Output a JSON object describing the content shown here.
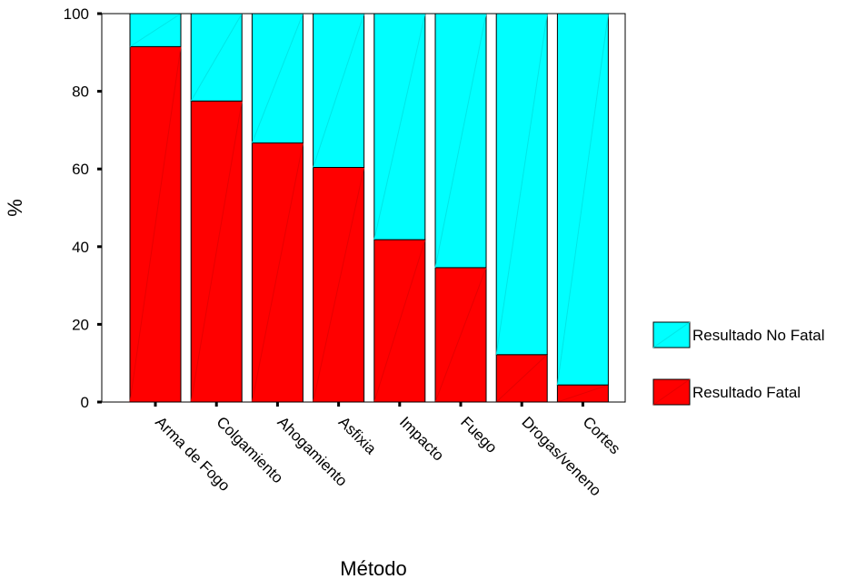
{
  "chart_data": {
    "type": "bar",
    "stacked": true,
    "percent_scale": true,
    "categories": [
      "Arma de Fogo",
      "Colgamiento",
      "Ahogamiento",
      "Asfixia",
      "Impacto",
      "Fuego",
      "Drogas/veneno",
      "Cortes"
    ],
    "series": [
      {
        "name": "Resultado Fatal",
        "color": "#ff0000",
        "values": [
          91.5,
          77.5,
          66.7,
          60.4,
          41.8,
          34.6,
          12.2,
          4.4
        ]
      },
      {
        "name": "Resultado No Fatal",
        "color": "#00ffff",
        "values": [
          8.5,
          22.5,
          33.3,
          39.6,
          58.2,
          65.4,
          87.8,
          95.6
        ]
      }
    ],
    "xlabel": "Método",
    "ylabel": "%",
    "ylim": [
      0,
      100
    ],
    "yticks": [
      0,
      20,
      40,
      60,
      80,
      100
    ],
    "grid": false,
    "legend_position": "right",
    "legend_order": [
      "Resultado No Fatal",
      "Resultado Fatal"
    ]
  }
}
